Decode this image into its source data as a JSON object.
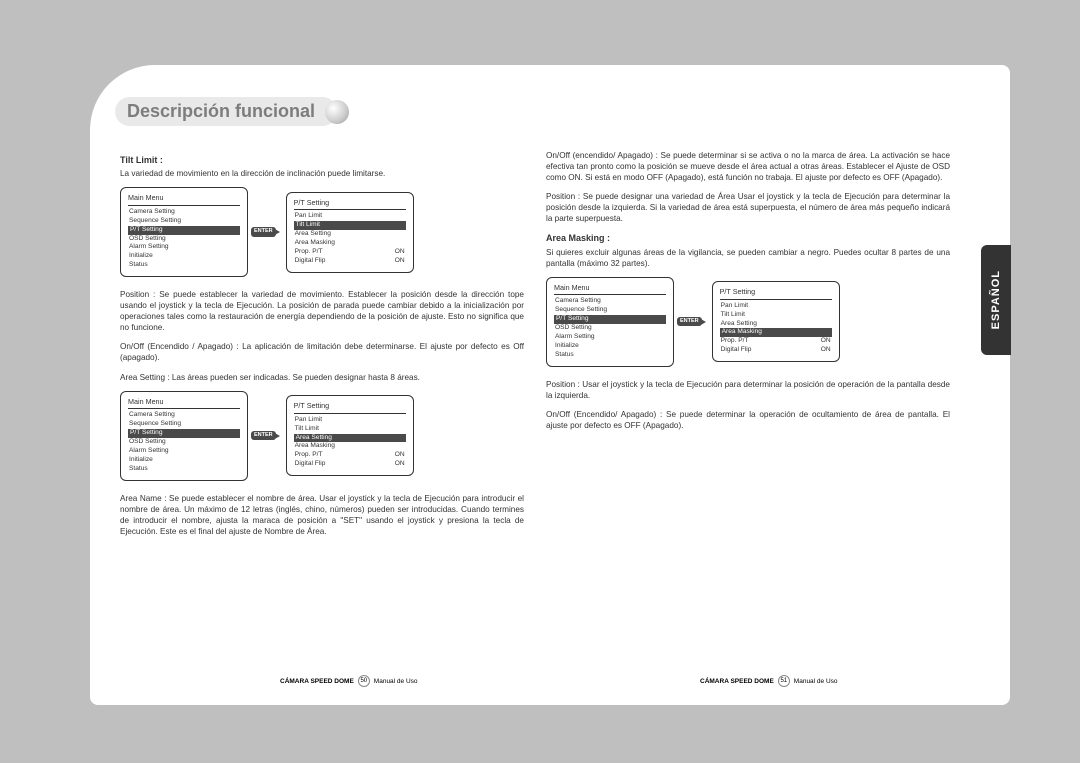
{
  "header": {
    "title": "Descripción funcional"
  },
  "sidetab": "ESPAÑOL",
  "left": {
    "tilt_title": "Tilt Limit :",
    "tilt_sub": "La variedad de movimiento en la dirección de inclinación puede limitarse.",
    "para_position": "Position : Se puede establecer la variedad de movimiento. Establecer la posición desde la dirección tope usando el joystick y la tecla de Ejecución. La posición de parada puede cambiar debido a la inicialización por operaciones tales como la restauración de energía dependiendo de la posición de ajuste. Esto no significa que no funcione.",
    "para_onoff": "On/Off (Encendido / Apagado) : La aplicación de limitación debe determinarse. El ajuste por defecto es Off (apagado).",
    "area_setting": "Area Setting : Las áreas pueden ser indicadas. Se pueden designar hasta 8 áreas.",
    "area_name": "Area Name : Se puede establecer el nombre de área. Usar el joystick y la tecla de Ejecución para introducir el nombre de área. Un máximo de 12 letras (inglés, chino, números) pueden ser introducidas. Cuando termines de introducir el nombre, ajusta la maraca de posición a \"SET\" usando el joystick y presiona la tecla de Ejecución. Este es el final del ajuste de Nombre de Área."
  },
  "right": {
    "para_top": "On/Off (encendido/ Apagado) : Se puede determinar si se activa o no la marca de área. La activación se hace efectiva tan pronto como la posición se mueve desde el área actual a otras áreas. Establecer el Ajuste de OSD como ON. Si está en modo OFF (Apagado), está función no trabaja. El ajuste por defecto es OFF (Apagado).",
    "para_pos": "Position : Se puede designar una variedad de Área Usar el joystick y la tecla de Ejecución para determinar la posición desde la izquierda. Si la variedad de área está superpuesta, el número de área más pequeño indicará la parte superpuesta.",
    "mask_title": "Area Masking :",
    "mask_sub": "Si quieres excluir algunas áreas de la vigilancia, se pueden cambiar a negro. Puedes ocultar 8 partes de una pantalla (máximo 32 partes).",
    "para_pos2": "Position : Usar el joystick y la tecla de Ejecución para determinar la posición de operación de la pantalla desde la izquierda.",
    "para_onoff2": "On/Off (Encendido/ Apagado) : Se puede determinar la operación de ocultamiento de área de pantalla. El ajuste por defecto es OFF (Apagado)."
  },
  "menu_main": {
    "title": "Main Menu",
    "items": [
      "Camera Setting",
      "Sequence Setting",
      "P/T Setting",
      "OSD Setting",
      "Alarm Setting",
      "Initialize",
      "Status"
    ],
    "highlight": 2
  },
  "menu_pt_tilt": {
    "title": "P/T Setting",
    "rows": [
      {
        "l": "Pan Limit",
        "r": ""
      },
      {
        "l": "Tilt Limit",
        "r": "",
        "hl": true
      },
      {
        "l": "Area Setting",
        "r": ""
      },
      {
        "l": "Area Masking",
        "r": ""
      },
      {
        "l": "Prop. P/T",
        "r": "ON"
      },
      {
        "l": "Digital Flip",
        "r": "ON"
      }
    ]
  },
  "menu_pt_area": {
    "title": "P/T Setting",
    "rows": [
      {
        "l": "Pan Limit",
        "r": ""
      },
      {
        "l": "Tilt Limit",
        "r": ""
      },
      {
        "l": "Area Setting",
        "r": "",
        "hl": true
      },
      {
        "l": "Area Masking",
        "r": ""
      },
      {
        "l": "Prop. P/T",
        "r": "ON"
      },
      {
        "l": "Digital Flip",
        "r": "ON"
      }
    ]
  },
  "menu_pt_mask": {
    "title": "P/T Setting",
    "rows": [
      {
        "l": "Pan Limit",
        "r": ""
      },
      {
        "l": "Tilt Limit",
        "r": ""
      },
      {
        "l": "Area Setting",
        "r": ""
      },
      {
        "l": "Area Masking",
        "r": "",
        "hl": true
      },
      {
        "l": "Prop. P/T",
        "r": "ON"
      },
      {
        "l": "Digital Flip",
        "r": "ON"
      }
    ]
  },
  "enter_label": "ENTER",
  "footer": {
    "brand": "CÁMARA SPEED DOME",
    "manual": "Manual de Uso",
    "page_left": "50",
    "page_right": "51"
  }
}
